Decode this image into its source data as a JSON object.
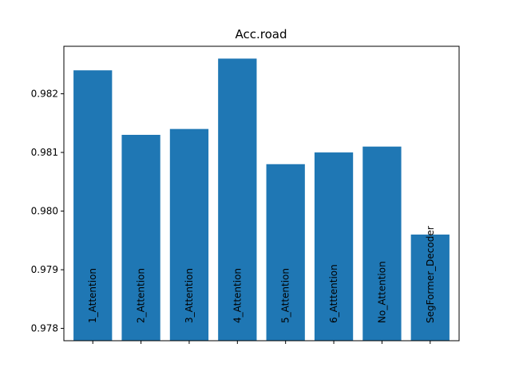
{
  "chart_data": {
    "type": "bar",
    "title": "Acc.road",
    "xlabel": "",
    "ylabel": "",
    "categories": [
      "1_Attention",
      "2_Attention",
      "3_Attention",
      "4_Attention",
      "5_Attention",
      "6_Atttention",
      "No_Attention",
      "SegFormer_Decoder"
    ],
    "values": [
      0.9824,
      0.9813,
      0.9814,
      0.9826,
      0.9808,
      0.981,
      0.9811,
      0.9796
    ],
    "ylim": [
      0.97779,
      0.98281
    ],
    "yticks": [
      0.978,
      0.979,
      0.98,
      0.981,
      0.982
    ],
    "ytick_labels": [
      "0.978",
      "0.979",
      "0.980",
      "0.981",
      "0.982"
    ],
    "bar_color": "#1f77b4",
    "grid": false,
    "legend": false
  }
}
